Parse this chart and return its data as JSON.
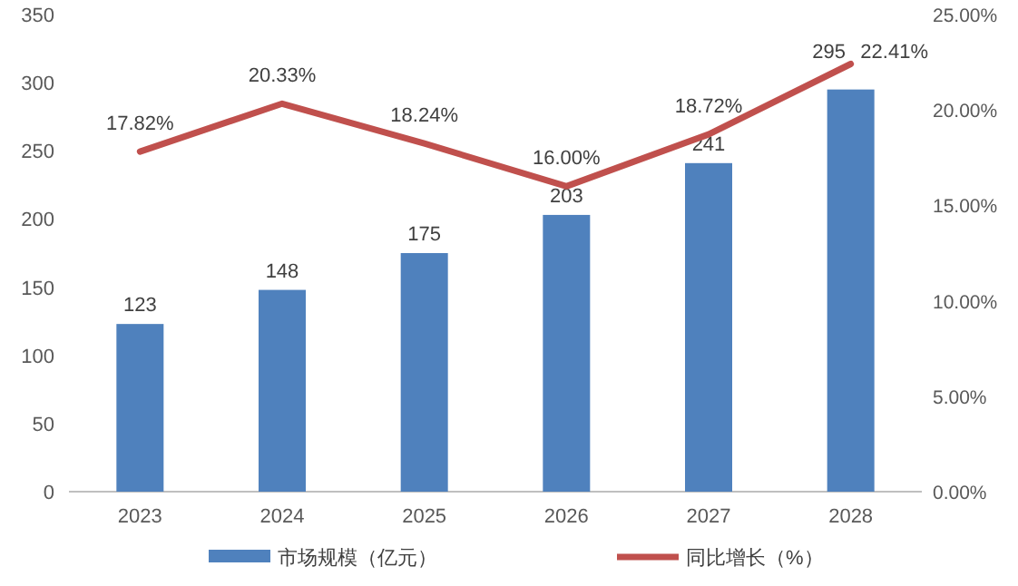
{
  "chart_data": {
    "type": "bar",
    "categories": [
      "2023",
      "2024",
      "2025",
      "2026",
      "2027",
      "2028"
    ],
    "series": [
      {
        "name": "市场规模（亿元）",
        "color": "#4f81bd",
        "values": [
          123,
          148,
          175,
          203,
          241,
          295
        ],
        "value_labels": [
          "123",
          "148",
          "175",
          "203",
          "241",
          "295"
        ]
      },
      {
        "name": "同比增长（%）",
        "type": "line",
        "axis": "y2",
        "color": "#c0504d",
        "values": [
          17.82,
          20.33,
          18.24,
          16.0,
          18.72,
          22.41
        ],
        "value_labels": [
          "17.82%",
          "20.33%",
          "18.24%",
          "16.00%",
          "18.72%",
          "22.41%"
        ]
      }
    ],
    "ylim": [
      0,
      350
    ],
    "yticks": [
      0,
      50,
      100,
      150,
      200,
      250,
      300,
      350
    ],
    "y2lim": [
      0,
      25
    ],
    "y2ticks": [
      {
        "value": 0,
        "label": "0.00%"
      },
      {
        "value": 5,
        "label": "5.00%"
      },
      {
        "value": 10,
        "label": "10.00%"
      },
      {
        "value": 15,
        "label": "15.00%"
      },
      {
        "value": 20,
        "label": "20.00%"
      },
      {
        "value": 25,
        "label": "25.00%"
      }
    ],
    "grid": false,
    "legend": "bottom"
  }
}
